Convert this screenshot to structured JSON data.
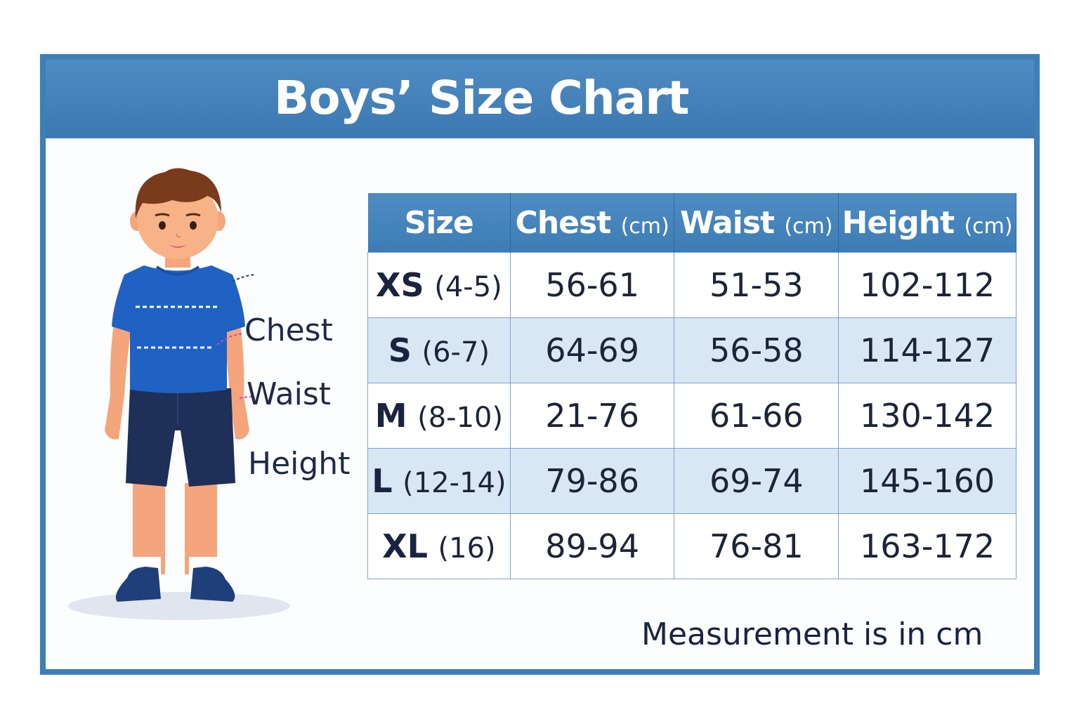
{
  "title": "Boys’ Size Chart",
  "colors": {
    "header_blue": "#3d7fb6",
    "row_alt": "#d9e7f5",
    "shirt": "#1f62c4",
    "shorts": "#1e2f58"
  },
  "figure_labels": {
    "chest": "Chest",
    "waist": "Waist",
    "height": "Height"
  },
  "table": {
    "headers": [
      {
        "label": "Size",
        "unit": ""
      },
      {
        "label": "Chest",
        "unit": "(cm)"
      },
      {
        "label": "Waist",
        "unit": "(cm)"
      },
      {
        "label": "Height",
        "unit": "(cm)"
      }
    ],
    "rows": [
      {
        "size": "XS",
        "age": "(4-5)",
        "chest": "56-61",
        "waist": "51-53",
        "height": "102-112"
      },
      {
        "size": "S",
        "age": "(6-7)",
        "chest": "64-69",
        "waist": "56-58",
        "height": "114-127"
      },
      {
        "size": "M",
        "age": "(8-10)",
        "chest": "21-76",
        "waist": "61-66",
        "height": "130-142"
      },
      {
        "size": "L",
        "age": "(12-14)",
        "chest": "79-86",
        "waist": "69-74",
        "height": "145-160"
      },
      {
        "size": "XL",
        "age": "(16)",
        "chest": "89-94",
        "waist": "76-81",
        "height": "163-172"
      }
    ]
  },
  "note": "Measurement is in cm"
}
